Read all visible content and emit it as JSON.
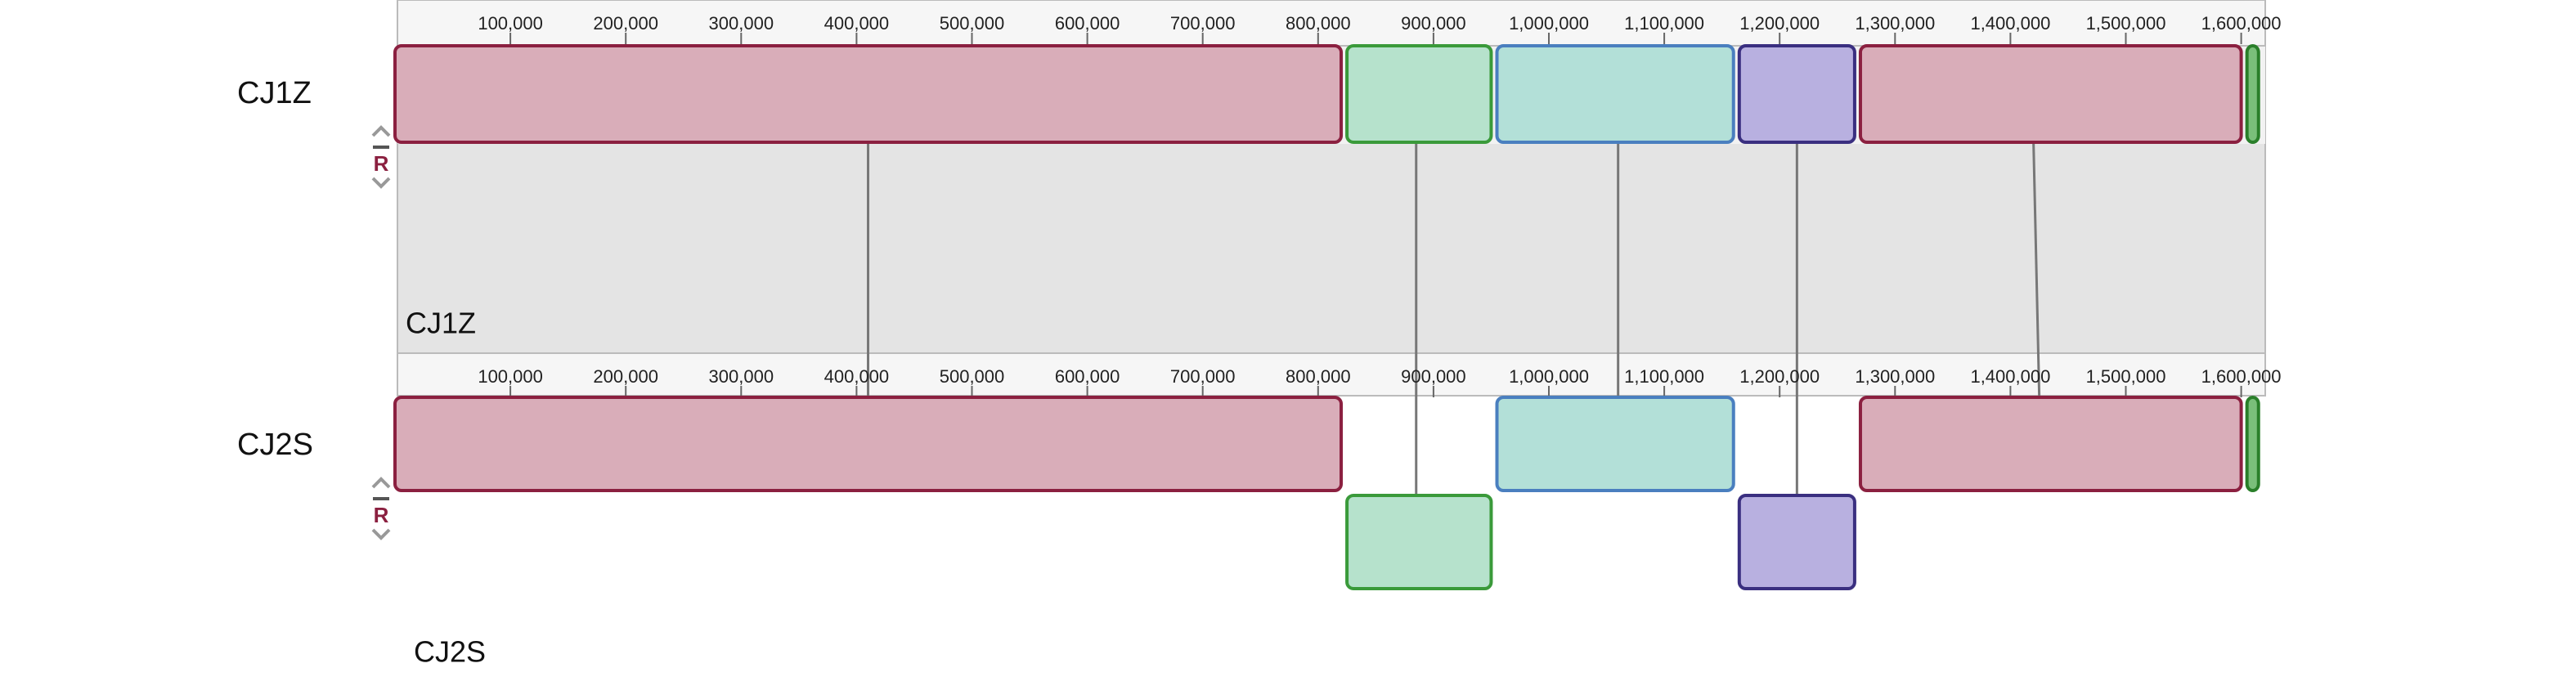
{
  "ruler_ticks": [
    {
      "value": 100000,
      "label": "100,000"
    },
    {
      "value": 200000,
      "label": "200,000"
    },
    {
      "value": 300000,
      "label": "300,000"
    },
    {
      "value": 400000,
      "label": "400,000"
    },
    {
      "value": 500000,
      "label": "500,000"
    },
    {
      "value": 600000,
      "label": "600,000"
    },
    {
      "value": 700000,
      "label": "700,000"
    },
    {
      "value": 800000,
      "label": "800,000"
    },
    {
      "value": 900000,
      "label": "900,000"
    },
    {
      "value": 1000000,
      "label": "1,000,000"
    },
    {
      "value": 1100000,
      "label": "1,100,000"
    },
    {
      "value": 1200000,
      "label": "1,200,000"
    },
    {
      "value": 1300000,
      "label": "1,300,000"
    },
    {
      "value": 1400000,
      "label": "1,400,000"
    },
    {
      "value": 1500000,
      "label": "1,500,000"
    },
    {
      "value": 1600000,
      "label": "1,600,000"
    }
  ],
  "genomes": [
    {
      "label": "CJ1Z",
      "inner_label": "CJ1Z",
      "control": "R",
      "blocks": [
        {
          "start": 0,
          "end": 820000,
          "fill": "#d9adb9",
          "stroke": "#8b2040",
          "inverted": false
        },
        {
          "start": 825000,
          "end": 950000,
          "fill": "#b6e2cc",
          "stroke": "#3a9a3a",
          "inverted": false
        },
        {
          "start": 955000,
          "end": 1160000,
          "fill": "#b3e0d8",
          "stroke": "#4a7fbf",
          "inverted": false
        },
        {
          "start": 1165000,
          "end": 1265000,
          "fill": "#b8b0e0",
          "stroke": "#3a2f80",
          "inverted": false
        },
        {
          "start": 1270000,
          "end": 1600000,
          "fill": "#d9adb9",
          "stroke": "#8b2040",
          "inverted": false
        },
        {
          "start": 1605000,
          "end": 1615000,
          "fill": "#7abf7a",
          "stroke": "#2a7f2a",
          "inverted": false
        }
      ]
    },
    {
      "label": "CJ2S",
      "inner_label": "CJ2S",
      "control": "R",
      "blocks": [
        {
          "start": 0,
          "end": 820000,
          "fill": "#d9adb9",
          "stroke": "#8b2040",
          "inverted": false
        },
        {
          "start": 825000,
          "end": 950000,
          "fill": "#b6e2cc",
          "stroke": "#3a9a3a",
          "inverted": true
        },
        {
          "start": 955000,
          "end": 1160000,
          "fill": "#b3e0d8",
          "stroke": "#4a7fbf",
          "inverted": false
        },
        {
          "start": 1165000,
          "end": 1265000,
          "fill": "#b8b0e0",
          "stroke": "#3a2f80",
          "inverted": true
        },
        {
          "start": 1270000,
          "end": 1600000,
          "fill": "#d9adb9",
          "stroke": "#8b2040",
          "inverted": false
        },
        {
          "start": 1605000,
          "end": 1615000,
          "fill": "#7abf7a",
          "stroke": "#2a7f2a",
          "inverted": false
        }
      ]
    }
  ],
  "connections": [
    {
      "from": 410000,
      "to": 410000
    },
    {
      "from": 885000,
      "to": 885000
    },
    {
      "from": 1060000,
      "to": 1060000
    },
    {
      "from": 1215000,
      "to": 1215000
    },
    {
      "from": 1420000,
      "to": 1425000
    }
  ]
}
